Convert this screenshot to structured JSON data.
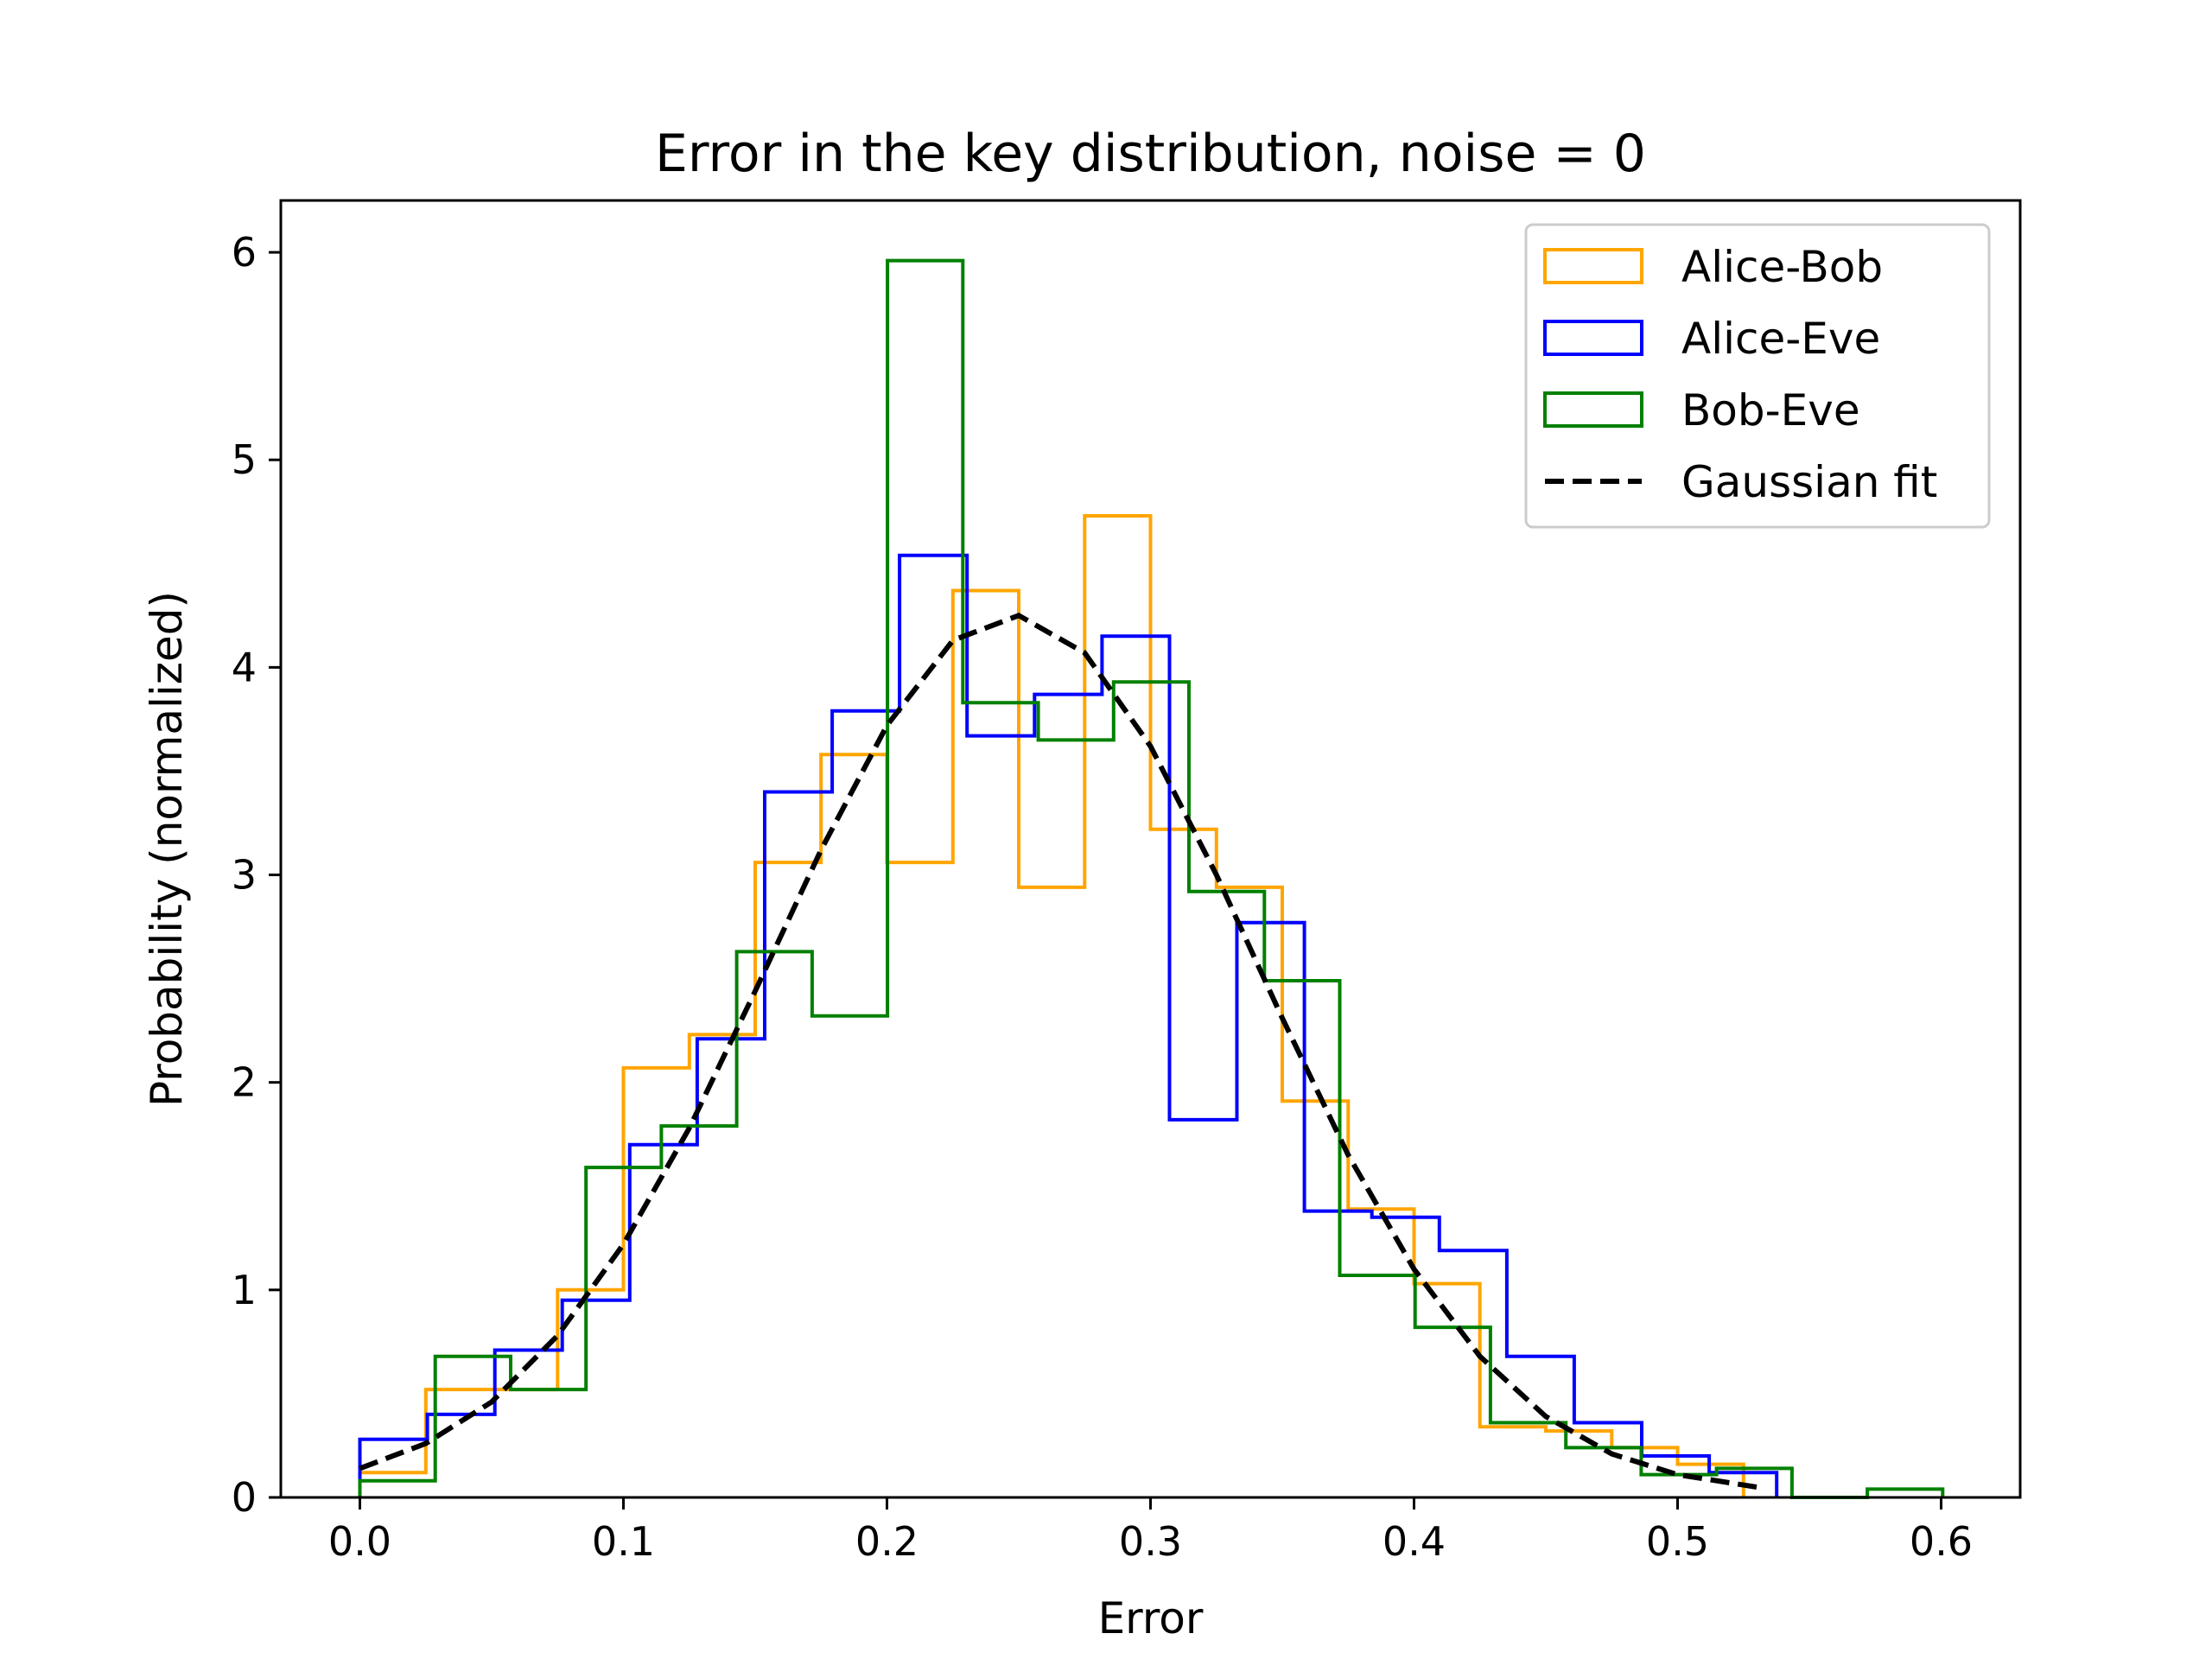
{
  "chart_data": {
    "type": "histogram",
    "title": "Error in the key distribution, noise = 0",
    "xlabel": "Error",
    "ylabel": "Probability (normalized)",
    "xlim": [
      -0.03,
      0.63
    ],
    "ylim": [
      0,
      6.25
    ],
    "xticks": [
      {
        "value": 0.0,
        "label": "0.0"
      },
      {
        "value": 0.1,
        "label": "0.1"
      },
      {
        "value": 0.2,
        "label": "0.2"
      },
      {
        "value": 0.3,
        "label": "0.3"
      },
      {
        "value": 0.4,
        "label": "0.4"
      },
      {
        "value": 0.5,
        "label": "0.5"
      },
      {
        "value": 0.6,
        "label": "0.6"
      }
    ],
    "yticks": [
      {
        "value": 0,
        "label": "0"
      },
      {
        "value": 1,
        "label": "1"
      },
      {
        "value": 2,
        "label": "2"
      },
      {
        "value": 3,
        "label": "3"
      },
      {
        "value": 4,
        "label": "4"
      },
      {
        "value": 5,
        "label": "5"
      },
      {
        "value": 6,
        "label": "6"
      }
    ],
    "grid": false,
    "legend_position": "top-right",
    "series": [
      {
        "name": "Alice-Bob",
        "color": "#FFA500",
        "style": "step",
        "edges": [
          0.0,
          0.025,
          0.05,
          0.075,
          0.1,
          0.125,
          0.15,
          0.175,
          0.2,
          0.225,
          0.25,
          0.275,
          0.3,
          0.325,
          0.35,
          0.375,
          0.4,
          0.425,
          0.45,
          0.475,
          0.5,
          0.525
        ],
        "values": [
          0.12,
          0.52,
          0.52,
          1.0,
          2.07,
          2.23,
          3.06,
          3.58,
          3.06,
          4.37,
          2.94,
          4.73,
          3.22,
          2.94,
          1.91,
          1.39,
          1.03,
          0.34,
          0.32,
          0.24,
          0.16
        ]
      },
      {
        "name": "Alice-Eve",
        "color": "#0000FF",
        "style": "step",
        "edges": [
          0.0,
          0.0256,
          0.0512,
          0.0768,
          0.1024,
          0.128,
          0.1536,
          0.1792,
          0.2048,
          0.2304,
          0.256,
          0.2816,
          0.3072,
          0.3328,
          0.3584,
          0.384,
          0.4096,
          0.4352,
          0.4608,
          0.4864,
          0.512,
          0.5376
        ],
        "values": [
          0.28,
          0.4,
          0.71,
          0.95,
          1.7,
          2.21,
          3.4,
          3.79,
          4.54,
          3.67,
          3.87,
          4.15,
          1.82,
          2.77,
          1.38,
          1.35,
          1.19,
          0.68,
          0.36,
          0.2,
          0.12
        ]
      },
      {
        "name": "Bob-Eve",
        "color": "#008000",
        "style": "step",
        "edges": [
          0.0,
          0.0286,
          0.0572,
          0.0858,
          0.1144,
          0.143,
          0.1716,
          0.2002,
          0.2288,
          0.2574,
          0.286,
          0.3146,
          0.3432,
          0.3718,
          0.4004,
          0.429,
          0.4576,
          0.4862,
          0.5148,
          0.5434,
          0.572,
          0.6006
        ],
        "values": [
          0.08,
          0.68,
          0.52,
          1.59,
          1.79,
          2.63,
          2.32,
          5.96,
          3.83,
          3.65,
          3.93,
          2.92,
          2.49,
          1.07,
          0.82,
          0.36,
          0.24,
          0.11,
          0.14,
          0.0,
          0.04
        ]
      },
      {
        "name": "Gaussian fit",
        "color": "#000000",
        "style": "dashed-line",
        "x": [
          0.0,
          0.025,
          0.05,
          0.075,
          0.1,
          0.125,
          0.15,
          0.175,
          0.2,
          0.225,
          0.25,
          0.275,
          0.3,
          0.325,
          0.35,
          0.375,
          0.4,
          0.425,
          0.45,
          0.475,
          0.5,
          0.53
        ],
        "values": [
          0.14,
          0.26,
          0.46,
          0.78,
          1.22,
          1.78,
          2.44,
          3.12,
          3.72,
          4.13,
          4.25,
          4.07,
          3.62,
          3.0,
          2.31,
          1.65,
          1.1,
          0.68,
          0.39,
          0.21,
          0.11,
          0.05
        ]
      }
    ]
  }
}
